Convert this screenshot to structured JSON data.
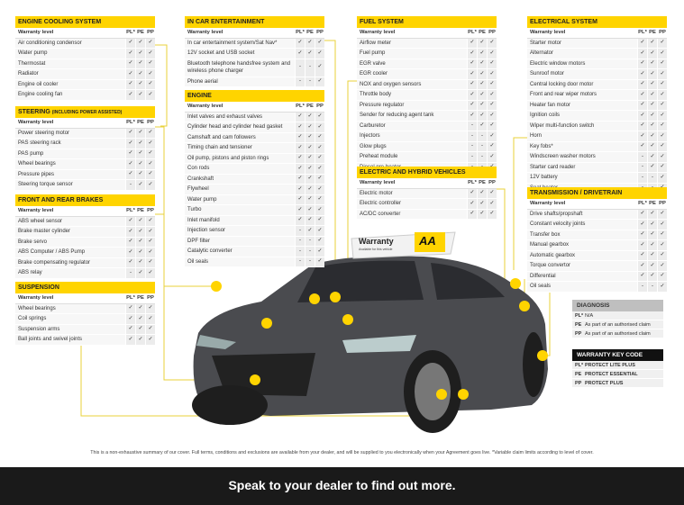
{
  "columns": {
    "label": "Warranty level",
    "pl": "PL*",
    "pe": "PE",
    "pp": "PP"
  },
  "tables": [
    {
      "title": "Engine cooling system",
      "rows": [
        [
          "Air conditioning condensor",
          "✓",
          "✓",
          "✓"
        ],
        [
          "Water pump",
          "✓",
          "✓",
          "✓"
        ],
        [
          "Thermostat",
          "✓",
          "✓",
          "✓"
        ],
        [
          "Radiator",
          "✓",
          "✓",
          "✓"
        ],
        [
          "Engine oil cooler",
          "✓",
          "✓",
          "✓"
        ],
        [
          "Engine cooling fan",
          "✓",
          "✓",
          "✓"
        ]
      ]
    },
    {
      "title": "Steering",
      "subtitle": "(including power assisted)",
      "rows": [
        [
          "Power steering motor",
          "✓",
          "✓",
          "✓"
        ],
        [
          "PAS steering rack",
          "✓",
          "✓",
          "✓"
        ],
        [
          "PAS pump",
          "✓",
          "✓",
          "✓"
        ],
        [
          "Wheel bearings",
          "✓",
          "✓",
          "✓"
        ],
        [
          "Pressure pipes",
          "✓",
          "✓",
          "✓"
        ],
        [
          "Steering torque sensor",
          "-",
          "✓",
          "✓"
        ]
      ]
    },
    {
      "title": "Front and rear brakes",
      "rows": [
        [
          "ABS wheel sensor",
          "✓",
          "✓",
          "✓"
        ],
        [
          "Brake master cylinder",
          "✓",
          "✓",
          "✓"
        ],
        [
          "Brake servo",
          "✓",
          "✓",
          "✓"
        ],
        [
          "ABS Computer / ABS Pump",
          "✓",
          "✓",
          "✓"
        ],
        [
          "Brake compensating regulator",
          "✓",
          "✓",
          "✓"
        ],
        [
          "ABS relay",
          "-",
          "✓",
          "✓"
        ]
      ]
    },
    {
      "title": "Suspension",
      "rows": [
        [
          "Wheel bearings",
          "✓",
          "✓",
          "✓"
        ],
        [
          "Coil springs",
          "✓",
          "✓",
          "✓"
        ],
        [
          "Suspension arms",
          "✓",
          "✓",
          "✓"
        ],
        [
          "Ball joints and swivel joints",
          "✓",
          "✓",
          "✓"
        ]
      ]
    },
    {
      "title": "In car entertainment",
      "rows": [
        [
          "In car entertainment system/Sat Nav*",
          "✓",
          "✓",
          "✓"
        ],
        [
          "12V socket and USB socket",
          "✓",
          "✓",
          "✓"
        ],
        [
          "Bluetooth telephone handsfree system and wireless phone charger",
          "-",
          "-",
          "✓"
        ],
        [
          "Phone aerial",
          "-",
          "-",
          "✓"
        ]
      ]
    },
    {
      "title": "Engine",
      "rows": [
        [
          "Inlet valves and exhaust valves",
          "✓",
          "✓",
          "✓"
        ],
        [
          "Cylinder head and cylinder head gasket",
          "✓",
          "✓",
          "✓"
        ],
        [
          "Camshaft and cam followers",
          "✓",
          "✓",
          "✓"
        ],
        [
          "Timing chain and tensioner",
          "✓",
          "✓",
          "✓"
        ],
        [
          "Oil pump, pistons and piston rings",
          "✓",
          "✓",
          "✓"
        ],
        [
          "Con rods",
          "✓",
          "✓",
          "✓"
        ],
        [
          "Crankshaft",
          "✓",
          "✓",
          "✓"
        ],
        [
          "Flywheel",
          "✓",
          "✓",
          "✓"
        ],
        [
          "Water pump",
          "✓",
          "✓",
          "✓"
        ],
        [
          "Turbo",
          "✓",
          "✓",
          "✓"
        ],
        [
          "Inlet manifold",
          "✓",
          "✓",
          "✓"
        ],
        [
          "Injection sensor",
          "-",
          "✓",
          "✓"
        ],
        [
          "DPF filter",
          "-",
          "-",
          "✓"
        ],
        [
          "Catalytic converter",
          "-",
          "-",
          "✓"
        ],
        [
          "Oil seals",
          "-",
          "-",
          "✓"
        ]
      ]
    },
    {
      "title": "Fuel system",
      "rows": [
        [
          "Airflow meter",
          "✓",
          "✓",
          "✓"
        ],
        [
          "Fuel pump",
          "✓",
          "✓",
          "✓"
        ],
        [
          "EGR valve",
          "✓",
          "✓",
          "✓"
        ],
        [
          "EGR cooler",
          "✓",
          "✓",
          "✓"
        ],
        [
          "NOX and oxygen sensors",
          "✓",
          "✓",
          "✓"
        ],
        [
          "Throttle body",
          "✓",
          "✓",
          "✓"
        ],
        [
          "Pressure regulator",
          "✓",
          "✓",
          "✓"
        ],
        [
          "Sender for reducing agent tank",
          "✓",
          "✓",
          "✓"
        ],
        [
          "Carburetor",
          "-",
          "✓",
          "✓"
        ],
        [
          "Injectors",
          "-",
          "-",
          "✓"
        ],
        [
          "Glow plugs",
          "-",
          "-",
          "✓"
        ],
        [
          "Preheat module",
          "-",
          "-",
          "✓"
        ],
        [
          "Diesel pre-heater",
          "-",
          "-",
          "✓"
        ]
      ]
    },
    {
      "title": "Electric and hybrid vehicles",
      "rows": [
        [
          "Electric motor",
          "✓",
          "✓",
          "✓"
        ],
        [
          "Electric controller",
          "✓",
          "✓",
          "✓"
        ],
        [
          "AC/DC converter",
          "✓",
          "✓",
          "✓"
        ]
      ]
    },
    {
      "title": "Electrical system",
      "rows": [
        [
          "Starter motor",
          "✓",
          "✓",
          "✓"
        ],
        [
          "Alternator",
          "✓",
          "✓",
          "✓"
        ],
        [
          "Electric window motors",
          "✓",
          "✓",
          "✓"
        ],
        [
          "Sunroof motor",
          "✓",
          "✓",
          "✓"
        ],
        [
          "Central locking door motor",
          "✓",
          "✓",
          "✓"
        ],
        [
          "Front and rear wiper motors",
          "✓",
          "✓",
          "✓"
        ],
        [
          "Heater fan motor",
          "✓",
          "✓",
          "✓"
        ],
        [
          "Ignition coils",
          "✓",
          "✓",
          "✓"
        ],
        [
          "Wiper multi-function switch",
          "✓",
          "✓",
          "✓"
        ],
        [
          "Horn",
          "✓",
          "✓",
          "✓"
        ],
        [
          "Key fobs*",
          "✓",
          "✓",
          "✓"
        ],
        [
          "Windscreen washer motors",
          "-",
          "✓",
          "✓"
        ],
        [
          "Starter card reader",
          "-",
          "✓",
          "✓"
        ],
        [
          "12V battery",
          "-",
          "-",
          "✓"
        ],
        [
          "Seat heater",
          "-",
          "-",
          "✓"
        ]
      ]
    },
    {
      "title": "Transmission / drivetrain",
      "rows": [
        [
          "Drive shafts/propshaft",
          "✓",
          "✓",
          "✓"
        ],
        [
          "Constant velocity joints",
          "✓",
          "✓",
          "✓"
        ],
        [
          "Transfer box",
          "✓",
          "✓",
          "✓"
        ],
        [
          "Manual gearbox",
          "✓",
          "✓",
          "✓"
        ],
        [
          "Automatic gearbox",
          "✓",
          "✓",
          "✓"
        ],
        [
          "Torque convertor",
          "✓",
          "✓",
          "✓"
        ],
        [
          "Differential",
          "✓",
          "✓",
          "✓"
        ],
        [
          "Oil seals",
          "-",
          "-",
          "✓"
        ]
      ]
    }
  ],
  "diagnosis": {
    "title": "DIAGNOSIS",
    "rows": [
      [
        "PL*",
        "N/A"
      ],
      [
        "PE",
        "As part of an authorised claim"
      ],
      [
        "PP",
        "As part of an authorised claim"
      ]
    ]
  },
  "key_code": {
    "title": "WARRANTY KEY CODE",
    "rows": [
      [
        "PL*",
        "PROTECT LITE PLUS"
      ],
      [
        "PE",
        "PROTECT ESSENTIAL"
      ],
      [
        "PP",
        "PROTECT PLUS"
      ]
    ]
  },
  "sign": {
    "title": "Warranty",
    "subtitle": "Available for this vehicle",
    "logo": "AA"
  },
  "disclaimer": "This is a non-exhaustive summary of our cover. Full terms, conditions and exclusions are available from your dealer, and will be supplied to you electronically when your Agreement goes live. *Variable claim limits according to level of cover.",
  "footer": "Speak to your dealer to find out more.",
  "colors": {
    "accent": "#ffd400",
    "car": "#4a4b4f",
    "footer": "#1a1a1a"
  }
}
